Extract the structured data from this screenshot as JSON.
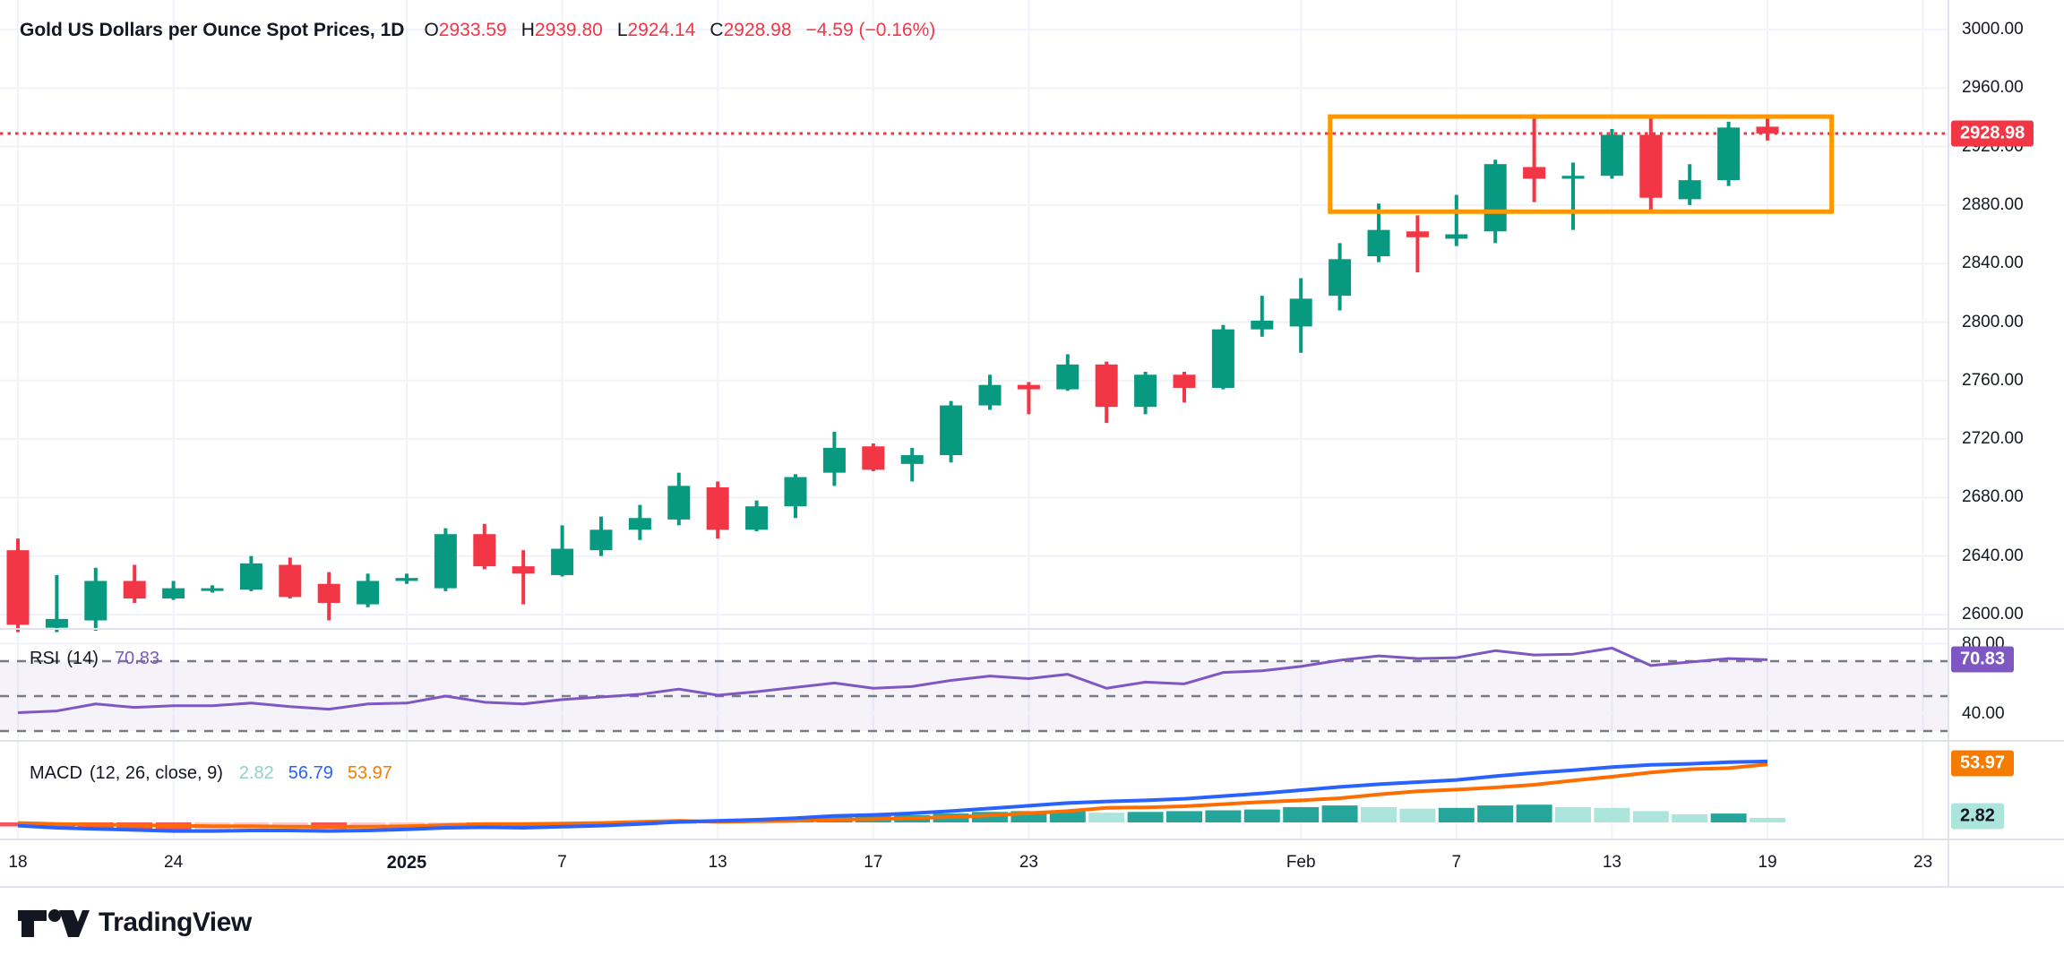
{
  "header": {
    "title": "Gold US Dollars per Ounce Spot Prices, 1D",
    "o_label": "O",
    "o": "2933.59",
    "h_label": "H",
    "h": "2939.80",
    "l_label": "L",
    "l": "2924.14",
    "c_label": "C",
    "c": "2928.98",
    "change": "−4.59 (−0.16%)"
  },
  "rsi_legend": {
    "name": "RSI",
    "params": "(14)",
    "value": "70.83"
  },
  "macd_legend": {
    "name": "MACD",
    "params": "(12, 26, close, 9)",
    "hist_value": "2.82",
    "macd_value": "56.79",
    "signal_value": "53.97"
  },
  "badges": {
    "price": "2928.98",
    "rsi": "70.83",
    "signal": "53.97",
    "hist": "2.82"
  },
  "watermark": {
    "text": "TradingView"
  },
  "colors": {
    "up": "#089981",
    "down": "#F23645",
    "rsi_line": "#7E57C2",
    "rsi_band": "rgba(126,87,194,0.08)",
    "rsi_dash": "#787B86",
    "macd_line": "#2962FF",
    "signal_line": "#FF6D00",
    "hist_up_grow": "#26A69A",
    "hist_up_fall": "#ACE5DC",
    "hist_down_fall": "#F7525F",
    "hist_down_grow": "#FCCCD3",
    "box": "#FF9800",
    "grid": "#F0F3FA",
    "separator": "#E0E3EB",
    "price_line": "#F23645",
    "text": "#131722"
  },
  "price_axis": {
    "ticks": [
      {
        "v": 3000,
        "label": "3000.00"
      },
      {
        "v": 2960,
        "label": "2960.00"
      },
      {
        "v": 2920,
        "label": "2920.00"
      },
      {
        "v": 2880,
        "label": "2880.00"
      },
      {
        "v": 2840,
        "label": "2840.00"
      },
      {
        "v": 2800,
        "label": "2800.00"
      },
      {
        "v": 2760,
        "label": "2760.00"
      },
      {
        "v": 2720,
        "label": "2720.00"
      },
      {
        "v": 2680,
        "label": "2680.00"
      },
      {
        "v": 2640,
        "label": "2640.00"
      },
      {
        "v": 2600,
        "label": "2600.00"
      }
    ]
  },
  "rsi_axis": {
    "ticks": [
      {
        "v": 80,
        "label": "80.00"
      },
      {
        "v": 40,
        "label": "40.00"
      }
    ]
  },
  "time_axis": {
    "ticks": [
      {
        "label": "18",
        "i": 0
      },
      {
        "label": "24",
        "i": 4
      },
      {
        "label": "2025",
        "i": 10,
        "bold": true
      },
      {
        "label": "7",
        "i": 14
      },
      {
        "label": "13",
        "i": 18
      },
      {
        "label": "17",
        "i": 22
      },
      {
        "label": "23",
        "i": 26
      },
      {
        "label": "Feb",
        "i": 33
      },
      {
        "label": "7",
        "i": 37
      },
      {
        "label": "13",
        "i": 41
      },
      {
        "label": "19",
        "i": 45
      },
      {
        "label": "23",
        "i": 49
      }
    ]
  },
  "chart_data": {
    "type": "candlestick",
    "title": "Gold US Dollars per Ounce Spot Prices",
    "interval": "1D",
    "last_price": 2928.98,
    "price_range_visible": [
      2580,
      3010
    ],
    "dates": [
      "Dec 18",
      "Dec 19",
      "Dec 20",
      "Dec 23",
      "Dec 24",
      "Dec 25",
      "Dec 26",
      "Dec 27",
      "Dec 30",
      "Dec 31",
      "Jan 1",
      "Jan 2",
      "Jan 3",
      "Jan 6",
      "Jan 7",
      "Jan 8",
      "Jan 9",
      "Jan 10",
      "Jan 13",
      "Jan 14",
      "Jan 15",
      "Jan 16",
      "Jan 17",
      "Jan 20",
      "Jan 21",
      "Jan 22",
      "Jan 23",
      "Jan 24",
      "Jan 27",
      "Jan 28",
      "Jan 29",
      "Jan 30",
      "Jan 31",
      "Feb 3",
      "Feb 4",
      "Feb 5",
      "Feb 6",
      "Feb 7",
      "Feb 10",
      "Feb 11",
      "Feb 12",
      "Feb 13",
      "Feb 14",
      "Feb 17",
      "Feb 18",
      "Feb 19"
    ],
    "candles_ohlc": [
      [
        2644,
        2652,
        2588,
        2593
      ],
      [
        2591,
        2627,
        2588,
        2597
      ],
      [
        2596,
        2632,
        2589,
        2623
      ],
      [
        2623,
        2634,
        2608,
        2611
      ],
      [
        2611,
        2623,
        2610,
        2618
      ],
      [
        2617,
        2620,
        2615,
        2618
      ],
      [
        2617,
        2640,
        2616,
        2635
      ],
      [
        2634,
        2639,
        2611,
        2612
      ],
      [
        2621,
        2629,
        2596,
        2608
      ],
      [
        2607,
        2628,
        2605,
        2623
      ],
      [
        2623,
        2628,
        2621,
        2625
      ],
      [
        2618,
        2659,
        2616,
        2655
      ],
      [
        2655,
        2662,
        2631,
        2633
      ],
      [
        2633,
        2644,
        2607,
        2628
      ],
      [
        2627,
        2661,
        2626,
        2645
      ],
      [
        2644,
        2667,
        2640,
        2658
      ],
      [
        2658,
        2675,
        2651,
        2666
      ],
      [
        2665,
        2697,
        2661,
        2688
      ],
      [
        2687,
        2691,
        2652,
        2658
      ],
      [
        2658,
        2678,
        2657,
        2674
      ],
      [
        2674,
        2696,
        2666,
        2694
      ],
      [
        2697,
        2725,
        2688,
        2714
      ],
      [
        2715,
        2717,
        2698,
        2699
      ],
      [
        2703,
        2714,
        2691,
        2709
      ],
      [
        2709,
        2746,
        2704,
        2743
      ],
      [
        2743,
        2764,
        2740,
        2757
      ],
      [
        2757,
        2759,
        2737,
        2754
      ],
      [
        2754,
        2778,
        2753,
        2771
      ],
      [
        2771,
        2773,
        2731,
        2742
      ],
      [
        2742,
        2766,
        2737,
        2764
      ],
      [
        2764,
        2766,
        2745,
        2755
      ],
      [
        2755,
        2798,
        2754,
        2795
      ],
      [
        2795,
        2818,
        2790,
        2801
      ],
      [
        2797,
        2830,
        2779,
        2816
      ],
      [
        2818,
        2854,
        2808,
        2843
      ],
      [
        2845,
        2881,
        2841,
        2863
      ],
      [
        2862,
        2873,
        2834,
        2858
      ],
      [
        2857,
        2887,
        2852,
        2860
      ],
      [
        2862,
        2911,
        2854,
        2908
      ],
      [
        2906,
        2942,
        2882,
        2898
      ],
      [
        2898,
        2909,
        2863,
        2900
      ],
      [
        2900,
        2932,
        2898,
        2928
      ],
      [
        2928,
        2941,
        2876,
        2885
      ],
      [
        2884,
        2908,
        2880,
        2897
      ],
      [
        2897,
        2937,
        2893,
        2933
      ],
      [
        2933.59,
        2939.8,
        2924.14,
        2928.98
      ]
    ],
    "rsi": {
      "period": 14,
      "levels": [
        70,
        50,
        30
      ],
      "axis_ticks": [
        80,
        40
      ],
      "last": 70.83,
      "values": [
        40.5,
        41.5,
        45.5,
        43.5,
        44.5,
        44.5,
        46,
        44,
        42.5,
        45.5,
        46,
        50,
        46.5,
        45.5,
        48,
        49.5,
        51,
        54,
        50.5,
        52.5,
        55,
        57.5,
        54.5,
        55.5,
        59,
        61.5,
        60,
        62.5,
        54.5,
        58,
        57,
        63.5,
        64.5,
        67,
        70.5,
        73,
        71.5,
        72,
        76,
        73.5,
        74,
        77.5,
        67.5,
        69.5,
        71.5,
        70.83
      ]
    },
    "macd": {
      "params": [
        12,
        26,
        9
      ],
      "last_macd": 56.79,
      "last_signal": 53.97,
      "last_hist": 2.82,
      "macd_values": [
        -3,
        -5,
        -6,
        -7,
        -8,
        -8,
        -7.5,
        -7.5,
        -8,
        -7.5,
        -6.5,
        -5,
        -4.5,
        -5,
        -4,
        -3,
        -1.5,
        0.5,
        1.5,
        2.5,
        4,
        6,
        7,
        8.5,
        10.5,
        13,
        15.5,
        18,
        19.5,
        20.5,
        22,
        24.5,
        27,
        30,
        33,
        35.5,
        37.5,
        39.5,
        43,
        46,
        48.5,
        51.5,
        53.5,
        54.5,
        56,
        56.79
      ],
      "signal_values": [
        -0.5,
        -1.5,
        -2,
        -2.5,
        -3,
        -3.5,
        -3.5,
        -4,
        -4,
        -4,
        -3.5,
        -2.5,
        -1.5,
        -1.5,
        -1,
        -0.5,
        0.5,
        1.5,
        0.5,
        1,
        1.5,
        2.5,
        3,
        4,
        5,
        6.5,
        8.5,
        10.5,
        13.5,
        14,
        15,
        17,
        19,
        20.5,
        22.5,
        26,
        29,
        30.5,
        32.5,
        35,
        39,
        42.5,
        46.5,
        49.5,
        50.5,
        53.97
      ],
      "hist_values": [
        -2.5,
        -3.5,
        -4,
        -4.5,
        -5,
        -4.5,
        -4,
        -3.5,
        -4,
        -3.5,
        -3,
        -2.5,
        -3,
        -3.5,
        -3,
        -2.5,
        -2,
        -1,
        1,
        1.5,
        2.5,
        3.5,
        4,
        4.5,
        5.5,
        6.5,
        7,
        7.5,
        6,
        6.5,
        7,
        7.5,
        8,
        9.5,
        10.5,
        9.5,
        8.5,
        9,
        10.5,
        11,
        9.5,
        9,
        7,
        5,
        5.5,
        2.82
      ]
    },
    "annotations": {
      "orange_box": {
        "start_index": 33.75,
        "end_index": 46.65,
        "top_price": 2940.5,
        "bottom_price": 2875.5
      },
      "last_price_line": 2928.98
    }
  }
}
